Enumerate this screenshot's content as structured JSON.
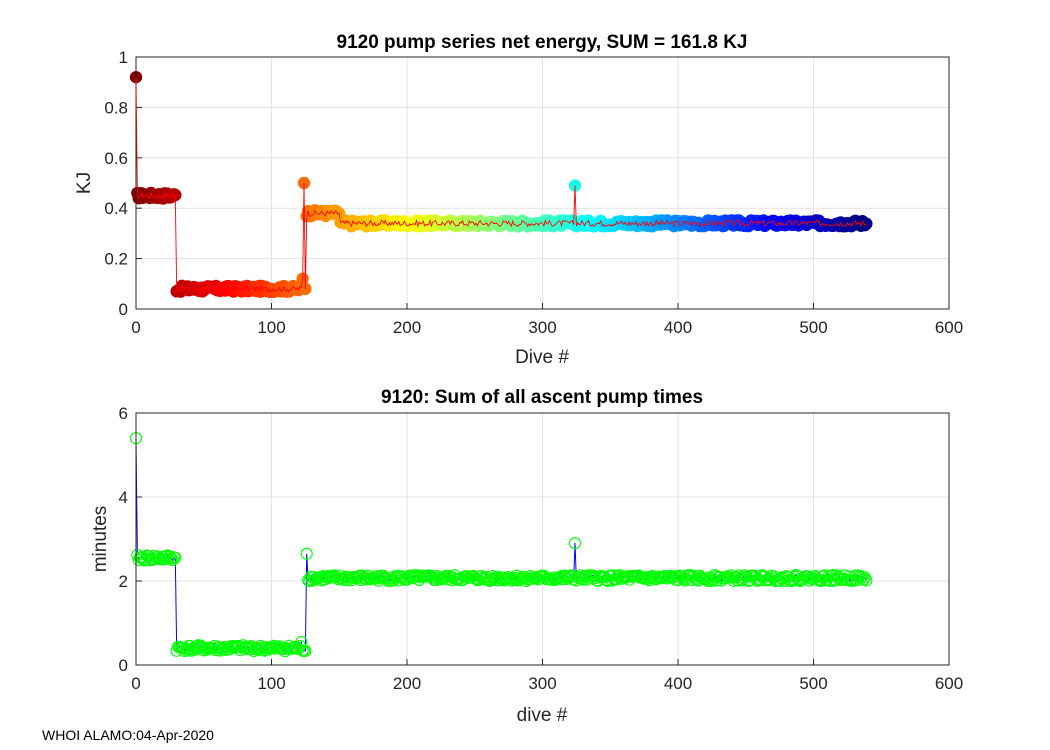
{
  "footer": "WHOI ALAMO:04-Apr-2020",
  "chart_data": [
    {
      "type": "scatter",
      "title": "9120 pump series net energy, SUM = 161.8 KJ",
      "xlabel": "Dive #",
      "ylabel": "KJ",
      "xlim": [
        0,
        600
      ],
      "ylim": [
        0,
        1
      ],
      "xticks": [
        0,
        100,
        200,
        300,
        400,
        500,
        600
      ],
      "yticks": [
        0,
        0.2,
        0.4,
        0.6,
        0.8,
        1
      ],
      "grid": true,
      "marker_colormap": "jet (dark red at dive 0 through red, yellow, green, cyan, blue to dark navy at the last dive)",
      "line_color": "#ff0000",
      "segments": [
        {
          "x_start": 0,
          "x_end": 0,
          "value": 0.92
        },
        {
          "x_start": 1,
          "x_end": 29,
          "value": 0.45
        },
        {
          "x_start": 30,
          "x_end": 122,
          "value": 0.08
        },
        {
          "x_start": 123,
          "x_end": 123,
          "value": 0.12
        },
        {
          "x_start": 124,
          "x_end": 124,
          "value": 0.5
        },
        {
          "x_start": 125,
          "x_end": 125,
          "value": 0.08
        },
        {
          "x_start": 126,
          "x_end": 150,
          "value": 0.38
        },
        {
          "x_start": 151,
          "x_end": 539,
          "value": 0.34
        }
      ],
      "spikes": [
        {
          "x": 324,
          "value": 0.49
        }
      ]
    },
    {
      "type": "scatter",
      "title": "9120: Sum of all ascent pump times",
      "xlabel": "dive #",
      "ylabel": "minutes",
      "xlim": [
        0,
        600
      ],
      "ylim": [
        0,
        6
      ],
      "xticks": [
        0,
        100,
        200,
        300,
        400,
        500,
        600
      ],
      "yticks": [
        0,
        2,
        4,
        6
      ],
      "grid": true,
      "marker_color": "#00ff00",
      "line_color": "#0000ff",
      "segments": [
        {
          "x_start": 0,
          "x_end": 0,
          "value": 5.4
        },
        {
          "x_start": 1,
          "x_end": 29,
          "value": 2.55
        },
        {
          "x_start": 30,
          "x_end": 121,
          "value": 0.4
        },
        {
          "x_start": 122,
          "x_end": 122,
          "value": 0.55
        },
        {
          "x_start": 123,
          "x_end": 125,
          "value": 0.38
        },
        {
          "x_start": 126,
          "x_end": 126,
          "value": 2.65
        },
        {
          "x_start": 127,
          "x_end": 539,
          "value": 2.07
        }
      ],
      "spikes": [
        {
          "x": 324,
          "value": 2.9
        }
      ]
    }
  ]
}
